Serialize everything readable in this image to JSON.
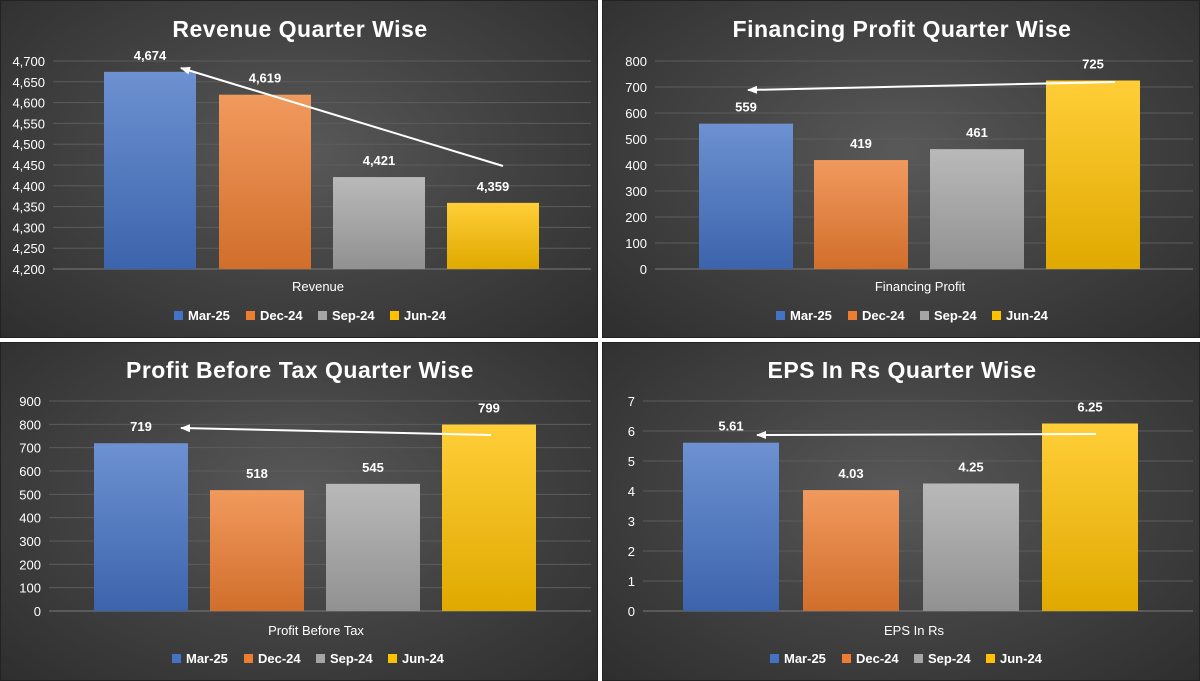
{
  "chart_data": [
    {
      "type": "bar",
      "title": "Revenue Quarter Wise",
      "xlabel": "Revenue",
      "categories": [
        "Revenue"
      ],
      "series": [
        {
          "name": "Mar-25",
          "values": [
            4674
          ],
          "label": "4,674",
          "color": "#4472C4"
        },
        {
          "name": "Dec-24",
          "values": [
            4619
          ],
          "label": "4,619",
          "color": "#ED7D31"
        },
        {
          "name": "Sep-24",
          "values": [
            4421
          ],
          "label": "4,421",
          "color": "#A5A5A5"
        },
        {
          "name": "Jun-24",
          "values": [
            4359
          ],
          "label": "4,359",
          "color": "#FFC000"
        }
      ],
      "ylim": [
        4200,
        4700
      ],
      "yticks": [
        "4,200",
        "4,250",
        "4,300",
        "4,350",
        "4,400",
        "4,450",
        "4,500",
        "4,550",
        "4,600",
        "4,650",
        "4,700"
      ],
      "grid": true,
      "legend": "bottom",
      "annotation": "arrow from Jun-24 to Mar-25"
    },
    {
      "type": "bar",
      "title": "Financing Profit Quarter Wise",
      "xlabel": "Financing Profit",
      "categories": [
        "Financing Profit"
      ],
      "series": [
        {
          "name": "Mar-25",
          "values": [
            559
          ],
          "label": "559",
          "color": "#4472C4"
        },
        {
          "name": "Dec-24",
          "values": [
            419
          ],
          "label": "419",
          "color": "#ED7D31"
        },
        {
          "name": "Sep-24",
          "values": [
            461
          ],
          "label": "461",
          "color": "#A5A5A5"
        },
        {
          "name": "Jun-24",
          "values": [
            725
          ],
          "label": "725",
          "color": "#FFC000"
        }
      ],
      "ylim": [
        0,
        800
      ],
      "yticks": [
        "0",
        "100",
        "200",
        "300",
        "400",
        "500",
        "600",
        "700",
        "800"
      ],
      "grid": true,
      "legend": "bottom",
      "annotation": "arrow from Jun-24 to Mar-25"
    },
    {
      "type": "bar",
      "title": "Profit Before Tax Quarter Wise",
      "xlabel": "Profit Before Tax",
      "categories": [
        "Profit Before Tax"
      ],
      "series": [
        {
          "name": "Mar-25",
          "values": [
            719
          ],
          "label": "719",
          "color": "#4472C4"
        },
        {
          "name": "Dec-24",
          "values": [
            518
          ],
          "label": "518",
          "color": "#ED7D31"
        },
        {
          "name": "Sep-24",
          "values": [
            545
          ],
          "label": "545",
          "color": "#A5A5A5"
        },
        {
          "name": "Jun-24",
          "values": [
            799
          ],
          "label": "799",
          "color": "#FFC000"
        }
      ],
      "ylim": [
        0,
        900
      ],
      "yticks": [
        "0",
        "100",
        "200",
        "300",
        "400",
        "500",
        "600",
        "700",
        "800",
        "900"
      ],
      "grid": true,
      "legend": "bottom",
      "annotation": "arrow from Jun-24 to Mar-25"
    },
    {
      "type": "bar",
      "title": "EPS In Rs Quarter Wise",
      "xlabel": "EPS In Rs",
      "categories": [
        "EPS In Rs"
      ],
      "series": [
        {
          "name": "Mar-25",
          "values": [
            5.61
          ],
          "label": "5.61",
          "color": "#4472C4"
        },
        {
          "name": "Dec-24",
          "values": [
            4.03
          ],
          "label": "4.03",
          "color": "#ED7D31"
        },
        {
          "name": "Sep-24",
          "values": [
            4.25
          ],
          "label": "4.25",
          "color": "#A5A5A5"
        },
        {
          "name": "Jun-24",
          "values": [
            6.25
          ],
          "label": "6.25",
          "color": "#FFC000"
        }
      ],
      "ylim": [
        0,
        7
      ],
      "yticks": [
        "0",
        "1",
        "2",
        "3",
        "4",
        "5",
        "6",
        "7"
      ],
      "grid": true,
      "legend": "bottom",
      "annotation": "arrow from Jun-24 to Mar-25"
    }
  ]
}
